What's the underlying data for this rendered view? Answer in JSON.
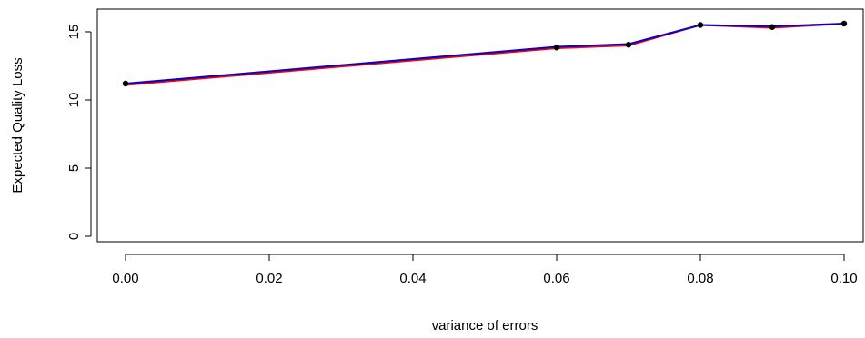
{
  "chart_data": {
    "type": "line",
    "title": "",
    "xlabel": "variance of errors",
    "ylabel": "Expected Quality Loss",
    "x": [
      0.0,
      0.06,
      0.07,
      0.08,
      0.09,
      0.1
    ],
    "series": [
      {
        "color": "#ff0000",
        "values": [
          11.1,
          13.8,
          14.0,
          15.5,
          15.3,
          15.6
        ]
      },
      {
        "color": "#0000cc",
        "values": [
          11.2,
          13.9,
          14.1,
          15.5,
          15.4,
          15.6
        ]
      }
    ],
    "points": {
      "color": "#000000",
      "values": [
        11.2,
        13.85,
        14.05,
        15.5,
        15.35,
        15.6
      ]
    },
    "xlim": [
      0.0,
      0.1
    ],
    "ylim": [
      0,
      16
    ],
    "xticks": [
      0.0,
      0.02,
      0.04,
      0.06,
      0.08,
      0.1
    ],
    "xtick_labels": [
      "0.00",
      "0.02",
      "0.04",
      "0.06",
      "0.08",
      "0.10"
    ],
    "yticks": [
      0,
      5,
      10,
      15
    ],
    "ytick_labels": [
      "0",
      "5",
      "10",
      "15"
    ],
    "grid": false,
    "legend": "none"
  }
}
